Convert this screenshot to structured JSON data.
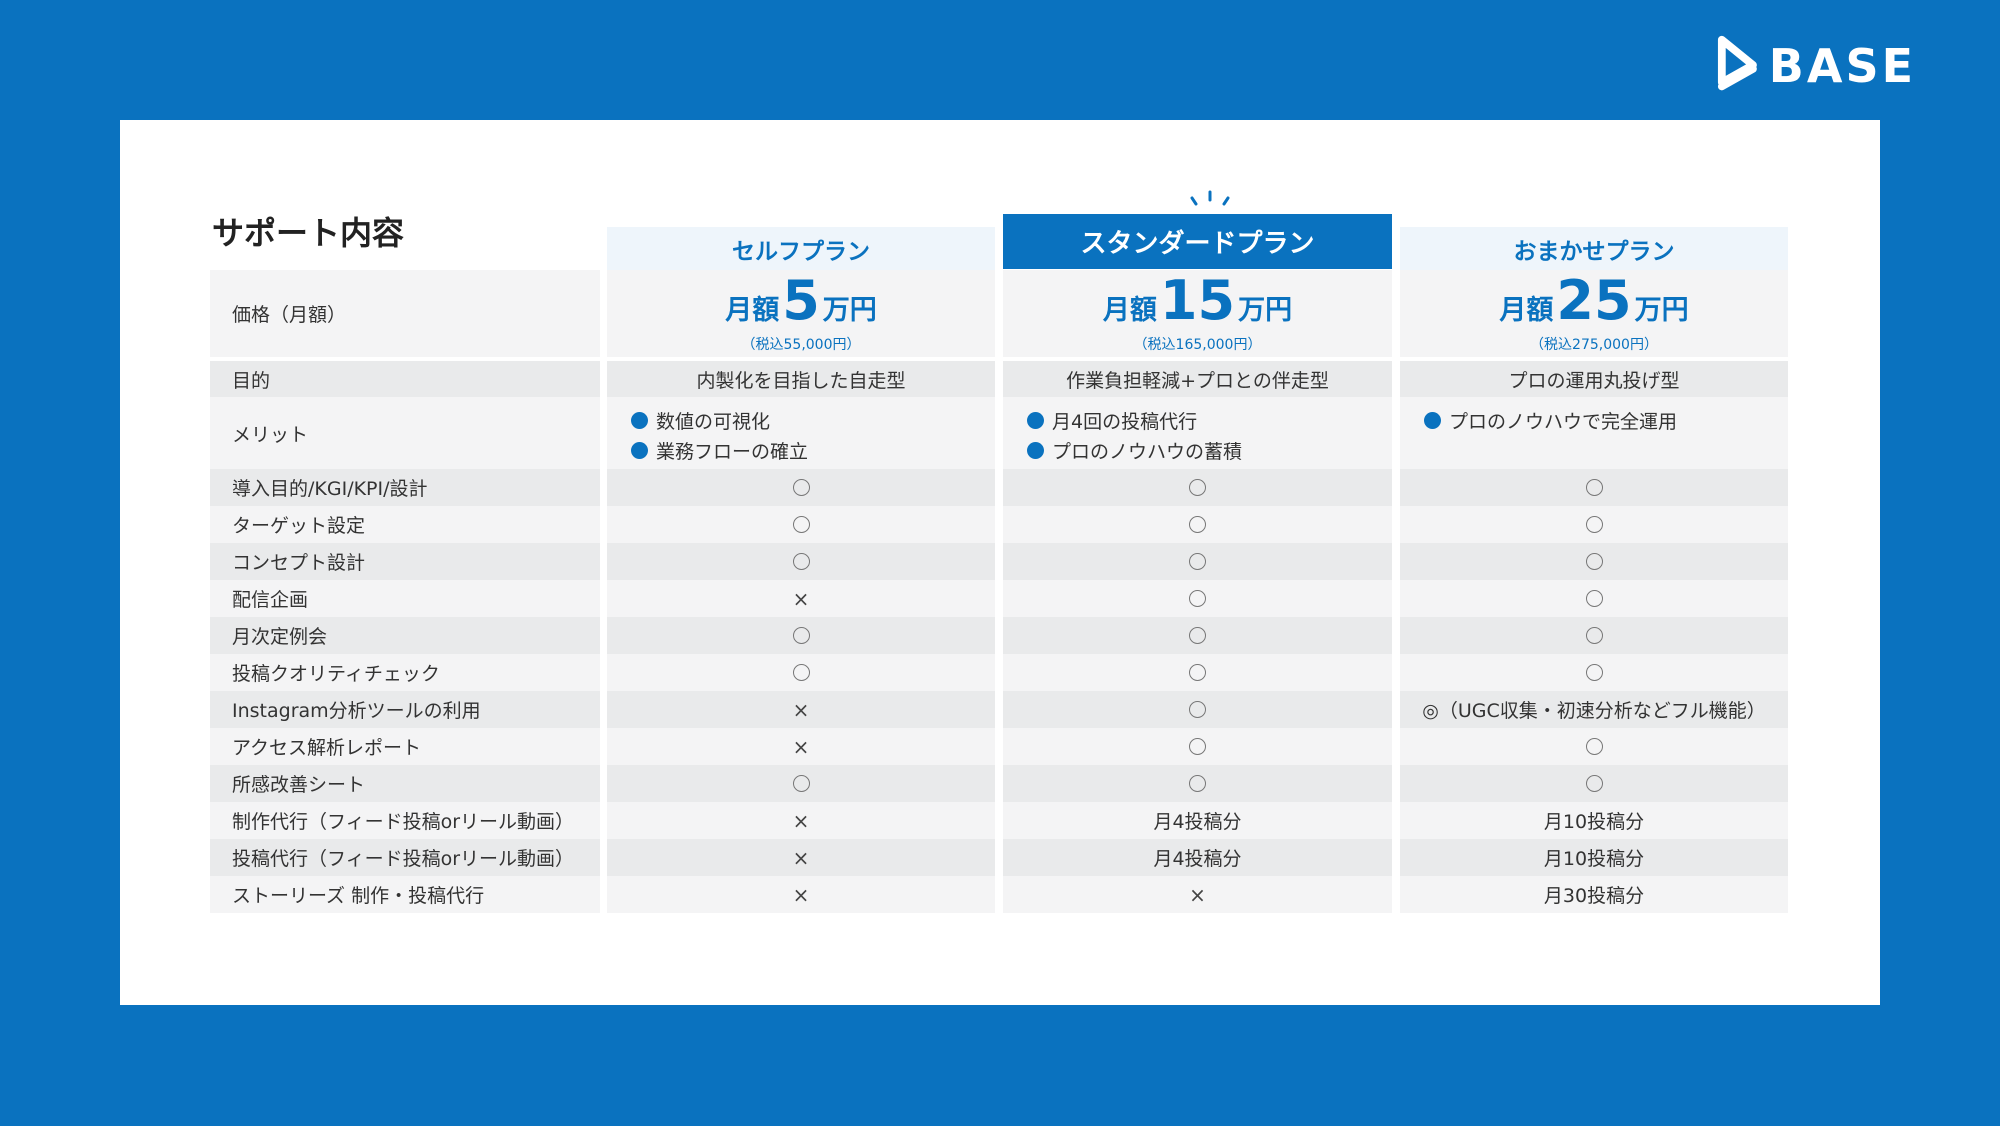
{
  "brand": {
    "name": "BASE"
  },
  "section_title": "サポート内容",
  "labels": {
    "price": "価格（月額）",
    "purpose": "目的",
    "merit": "メリット",
    "features": [
      "導入目的/KGI/KPI/設計",
      "ターゲット設定",
      "コンセプト設計",
      "配信企画",
      "月次定例会",
      "投稿クオリティチェック",
      "Instagram分析ツールの利用",
      "アクセス解析レポート",
      "所感改善シート",
      "制作代行（フィード投稿orリール動画）",
      "投稿代行（フィード投稿orリール動画）",
      "ストーリーズ 制作・投稿代行"
    ]
  },
  "plans": [
    {
      "name": "セルフプラン",
      "price_prefix": "月額",
      "price_number": "5",
      "price_suffix": "万円",
      "price_tax": "（税込55,000円）",
      "purpose": "内製化を目指した自走型",
      "merits": [
        "数値の可視化",
        "業務フローの確立"
      ],
      "features": [
        "○",
        "○",
        "○",
        "×",
        "○",
        "○",
        "×",
        "×",
        "○",
        "×",
        "×",
        "×"
      ]
    },
    {
      "name": "スタンダードプラン",
      "price_prefix": "月額",
      "price_number": "15",
      "price_suffix": "万円",
      "price_tax": "（税込165,000円）",
      "purpose": "作業負担軽減+プロとの伴走型",
      "merits": [
        "月4回の投稿代行",
        "プロのノウハウの蓄積"
      ],
      "features": [
        "○",
        "○",
        "○",
        "○",
        "○",
        "○",
        "○",
        "○",
        "○",
        "月4投稿分",
        "月4投稿分",
        "×"
      ]
    },
    {
      "name": "おまかせプラン",
      "price_prefix": "月額",
      "price_number": "25",
      "price_suffix": "万円",
      "price_tax": "（税込275,000円）",
      "purpose": "プロの運用丸投げ型",
      "merits": [
        "プロのノウハウで完全運用"
      ],
      "features": [
        "○",
        "○",
        "○",
        "○",
        "○",
        "○",
        "◎（UGC収集・初速分析などフル機能）",
        "○",
        "○",
        "月10投稿分",
        "月10投稿分",
        "月30投稿分"
      ]
    }
  ],
  "colors": {
    "brand_blue": "#0a72bf",
    "row_dark": "#e9eaeb",
    "row_light": "#f4f4f5"
  }
}
